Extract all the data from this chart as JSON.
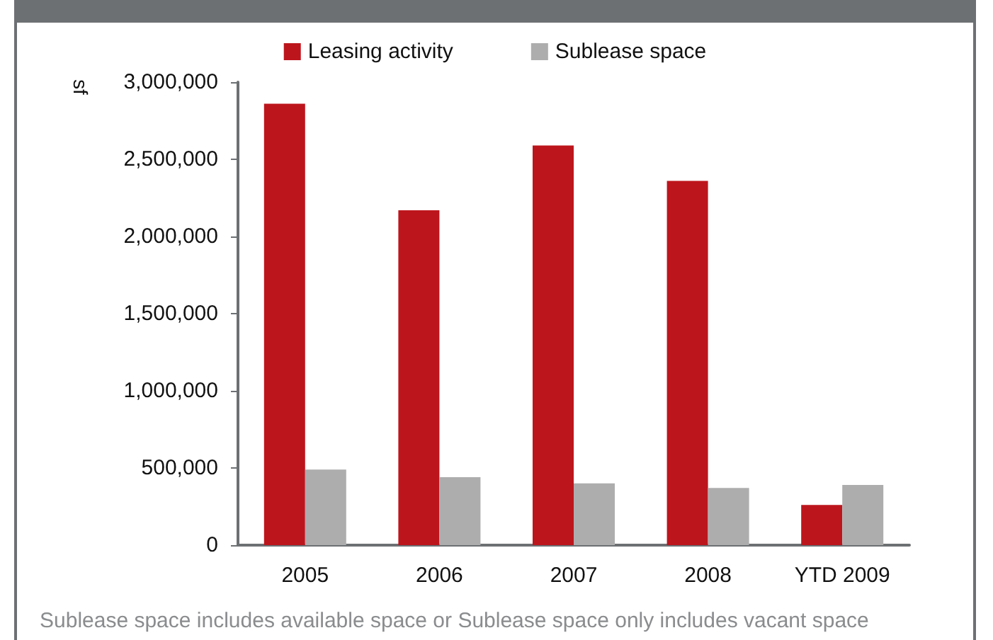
{
  "chart_data": {
    "type": "bar",
    "ylabel": "sf",
    "categories": [
      "2005",
      "2006",
      "2007",
      "2008",
      "YTD 2009"
    ],
    "series": [
      {
        "name": "Leasing activity",
        "color": "#bd151c",
        "values": [
          2860000,
          2170000,
          2590000,
          2360000,
          260000
        ]
      },
      {
        "name": "Sublease space",
        "color": "#adadae",
        "values": [
          490000,
          440000,
          400000,
          370000,
          390000
        ]
      }
    ],
    "ylim": [
      0,
      3000000
    ],
    "yticks": [
      0,
      {
        "value": 500000,
        "label": "500,000"
      },
      {
        "value": 1000000,
        "label": "1,000,000"
      },
      {
        "value": 1500000,
        "label": "1,500,000"
      },
      {
        "value": 2000000,
        "label": "2,000,000"
      },
      {
        "value": 2500000,
        "label": "2,500,000"
      },
      {
        "value": 3000000,
        "label": "3,000,000"
      }
    ],
    "grid": false,
    "legend": "top",
    "annotations": [
      "Sublease space includes available space or Sublease space only includes vacant space"
    ]
  }
}
